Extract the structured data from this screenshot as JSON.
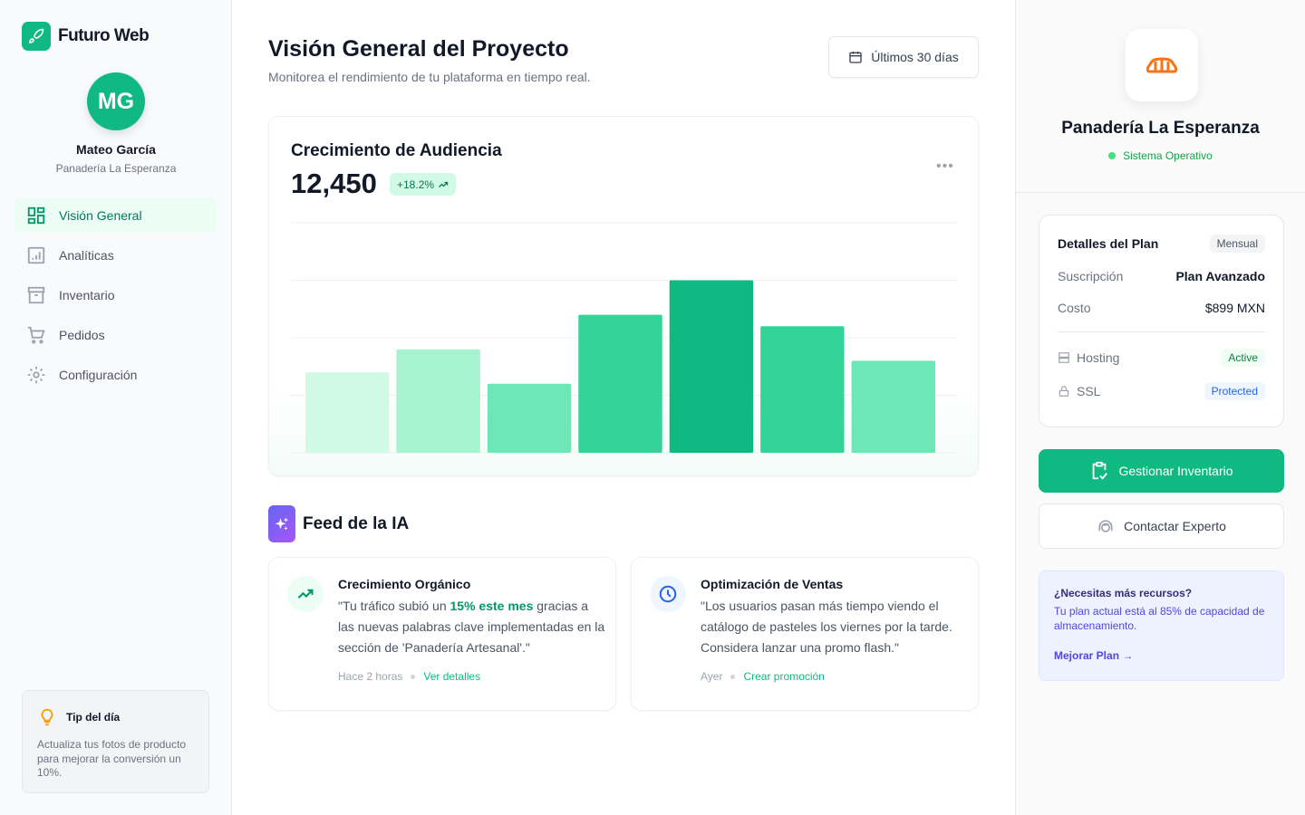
{
  "app": {
    "name": "Futuro Web"
  },
  "user": {
    "initials": "MG",
    "name": "Mateo García",
    "business": "Panadería La Esperanza"
  },
  "sidebar": {
    "items": [
      {
        "label": "Visión General",
        "icon": "dashboard-icon",
        "active": true
      },
      {
        "label": "Analíticas",
        "icon": "chart-icon"
      },
      {
        "label": "Inventario",
        "icon": "archive-icon"
      },
      {
        "label": "Pedidos",
        "icon": "cart-icon"
      },
      {
        "label": "Configuración",
        "icon": "gear-icon"
      }
    ],
    "tip": {
      "title": "Tip del día",
      "text": "Actualiza tus fotos de producto para mejorar la conversión un 10%."
    }
  },
  "header": {
    "title": "Visión General del Proyecto",
    "subtitle": "Monitorea el rendimiento de tu plataforma en tiempo real.",
    "date_range": "Últimos 30 días"
  },
  "audience": {
    "title": "Crecimiento de Audiencia",
    "value": "12,450",
    "change": "+18.2%"
  },
  "chart_data": {
    "type": "bar",
    "values": [
      35,
      45,
      30,
      60,
      75,
      55,
      40
    ],
    "ylim": [
      0,
      100
    ],
    "grid": true,
    "colors": [
      "#d1fae5",
      "#a7f3d0",
      "#6ee7b7",
      "#34d399",
      "#10b981",
      "#34d399",
      "#6ee7b7"
    ]
  },
  "feed": {
    "title": "Feed de la IA",
    "cards": [
      {
        "title": "Crecimiento Orgánico",
        "pre": "\"Tu tráfico subió un ",
        "highlight": "15% este mes",
        "post": " gracias a las nuevas palabras clave implementadas en la sección de 'Panadería Artesanal'.\"",
        "time": "Hace 2 horas",
        "action": "Ver detalles"
      },
      {
        "title": "Optimización de Ventas",
        "text": "\"Los usuarios pasan más tiempo viendo el catálogo de pasteles los viernes por la tarde. Considera lanzar una promo flash.\"",
        "time": "Ayer",
        "action": "Crear promoción"
      }
    ]
  },
  "business": {
    "name": "Panadería La Esperanza",
    "status": "Sistema Operativo"
  },
  "plan": {
    "title": "Detalles del Plan",
    "period": "Mensual",
    "sub_label": "Suscripción",
    "sub_value": "Plan Avanzado",
    "cost_label": "Costo",
    "cost_value": "$899 MXN",
    "hosting_label": "Hosting",
    "hosting_status": "Active",
    "ssl_label": "SSL",
    "ssl_status": "Protected"
  },
  "actions": {
    "inventory": "Gestionar Inventario",
    "expert": "Contactar Experto"
  },
  "resources": {
    "title": "¿Necesitas más recursos?",
    "text": "Tu plan actual está al 85% de capacidad de almacenamiento.",
    "link": "Mejorar Plan →"
  }
}
